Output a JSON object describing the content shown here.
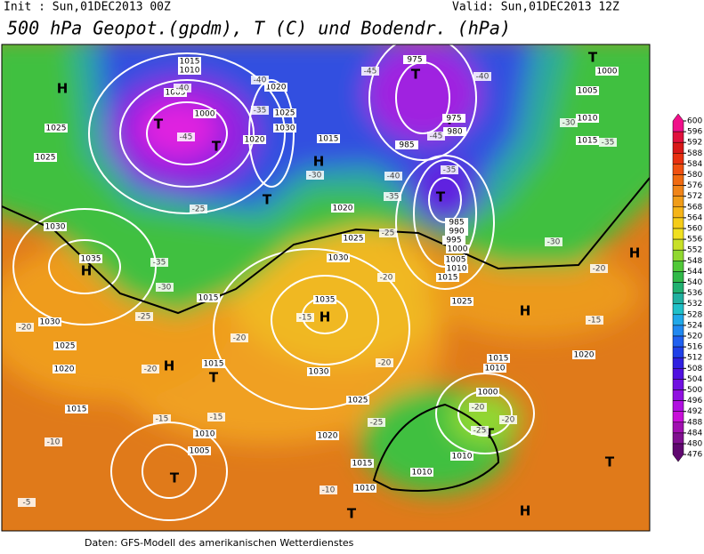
{
  "header": {
    "init": "Init : Sun,01DEC2013 00Z",
    "valid": "Valid: Sun,01DEC2013 12Z",
    "title": "500 hPa Geopot.(gpdm), T (C) und Bodendr. (hPa)"
  },
  "footer": "Daten: GFS-Modell des amerikanischen Wetterdienstes",
  "pressure_centers": [
    "H",
    "H",
    "H",
    "H",
    "H",
    "H",
    "H",
    "H",
    "T",
    "T",
    "T",
    "T",
    "T",
    "T",
    "T",
    "T",
    "T",
    "T",
    "T",
    "T"
  ],
  "isobar_labels": [
    "1015",
    "1010",
    "1005",
    "1000",
    "1025",
    "1025",
    "1030",
    "1035",
    "1030",
    "1025",
    "1020",
    "1015",
    "1020",
    "1025",
    "1030",
    "1020",
    "1015",
    "975",
    "975",
    "980",
    "985",
    "985",
    "990",
    "995",
    "1000",
    "1005",
    "1010",
    "1015",
    "1035",
    "1030",
    "1025",
    "1020",
    "1000",
    "1005",
    "1010",
    "1015",
    "1020",
    "1025",
    "1015",
    "1010",
    "1000",
    "1005",
    "1010",
    "1015",
    "1030",
    "1025",
    "1020",
    "1015",
    "1010",
    "1010",
    "1010",
    "1015"
  ],
  "temperature_labels": [
    "-40",
    "-45",
    "-40",
    "-35",
    "-30",
    "-25",
    "-45",
    "-40",
    "-45",
    "-35",
    "-40",
    "-35",
    "-30",
    "-35",
    "-30",
    "-25",
    "-20",
    "-20",
    "-15",
    "-35",
    "-30",
    "-25",
    "-20",
    "-20",
    "-15",
    "-20",
    "-20",
    "-15",
    "-15",
    "-10",
    "-5",
    "-10",
    "-25",
    "-20",
    "-20",
    "-25"
  ],
  "colorbar": {
    "ticks": [
      600,
      596,
      592,
      588,
      584,
      580,
      576,
      572,
      568,
      564,
      560,
      556,
      552,
      548,
      544,
      540,
      536,
      532,
      528,
      524,
      520,
      516,
      512,
      508,
      504,
      500,
      496,
      492,
      488,
      484,
      480,
      476
    ],
    "colors": [
      "#f0108a",
      "#e0103c",
      "#d81818",
      "#e83010",
      "#f05010",
      "#f06a10",
      "#f08418",
      "#f09c18",
      "#f5b418",
      "#f5cc18",
      "#f0e020",
      "#c8e028",
      "#90d830",
      "#50c838",
      "#30b848",
      "#20b070",
      "#20b0a0",
      "#20c0c8",
      "#20a8e8",
      "#2088f0",
      "#2060f0",
      "#2040e8",
      "#3020e0",
      "#5010e0",
      "#7010e0",
      "#9010e0",
      "#b010e0",
      "#c810d8",
      "#a010b0",
      "#801090",
      "#600870"
    ]
  }
}
